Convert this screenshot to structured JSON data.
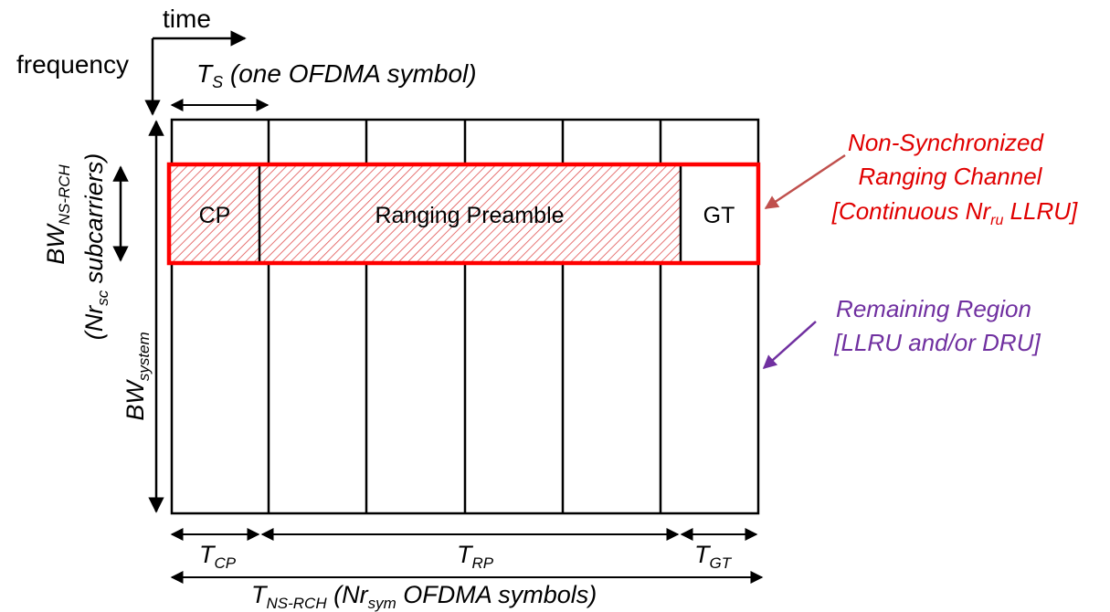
{
  "axes": {
    "time_label": "time",
    "frequency_label": "frequency"
  },
  "symbol_duration": {
    "symbol": "T",
    "subscript": "S",
    "note": " (one OFDMA symbol)"
  },
  "regions": {
    "cp_label": "CP",
    "preamble_label": "Ranging Preamble",
    "gt_label": "GT"
  },
  "bandwidth": {
    "rch_symbol": "BW",
    "rch_subscript": "NS-RCH",
    "subcarriers_open": "(Nr",
    "subcarriers_subscript": "sc",
    "subcarriers_close": " subcarriers)",
    "system_symbol": "BW",
    "system_subscript": "system"
  },
  "annotations": {
    "ns_line1": "Non-Synchronized",
    "ns_line2": "Ranging Channel",
    "ns_line3_open": "[Continuous Nr",
    "ns_line3_subscript": "ru",
    "ns_line3_close": " LLRU]",
    "remaining_line1": "Remaining Region",
    "remaining_line2": "[LLRU and/or DRU]"
  },
  "durations": {
    "cp_symbol": "T",
    "cp_subscript": "CP",
    "rp_symbol": "T",
    "rp_subscript": "RP",
    "gt_symbol": "T",
    "gt_subscript": "GT",
    "total_symbol": "T",
    "total_subscript": "NS-RCH",
    "total_open": " (Nr",
    "total_sym_subscript": "sym",
    "total_close": " OFDMA symbols)"
  },
  "colors": {
    "channel_border": "#ff0000",
    "hatch": "#e05050",
    "ns_annotation": "#e00000",
    "ns_arrow": "#c0504d",
    "remaining_annotation": "#7030a0"
  }
}
